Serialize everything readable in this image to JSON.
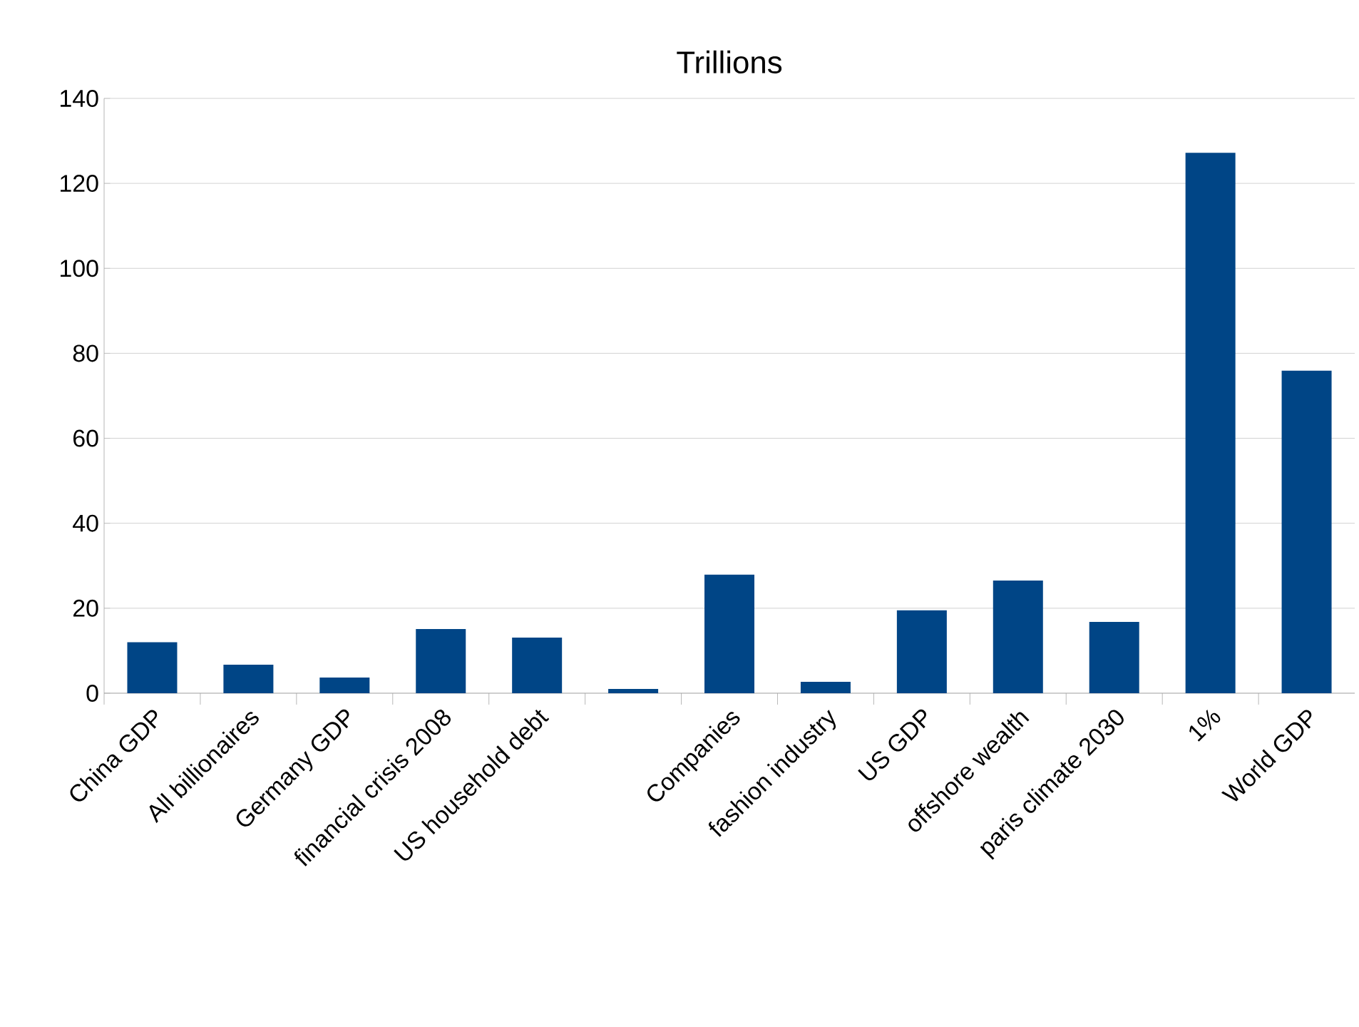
{
  "chart_data": {
    "type": "bar",
    "title": "Trillions",
    "categories": [
      "China GDP",
      "All billionaires",
      "Germany GDP",
      "financial crisis 2008",
      "US household debt",
      null,
      "Companies",
      "fashion industry",
      "US GDP",
      "offshore wealth",
      "paris climate 2030",
      "1%",
      "World GDP"
    ],
    "values": [
      12,
      6.7,
      3.7,
      15.1,
      13.1,
      1,
      27.9,
      2.7,
      19.5,
      26.5,
      16.8,
      127.2,
      75.9
    ],
    "color": "#004586",
    "ylim": [
      0,
      140
    ],
    "yticks": [
      0,
      20,
      40,
      60,
      80,
      100,
      120,
      140
    ],
    "grid": "y"
  }
}
